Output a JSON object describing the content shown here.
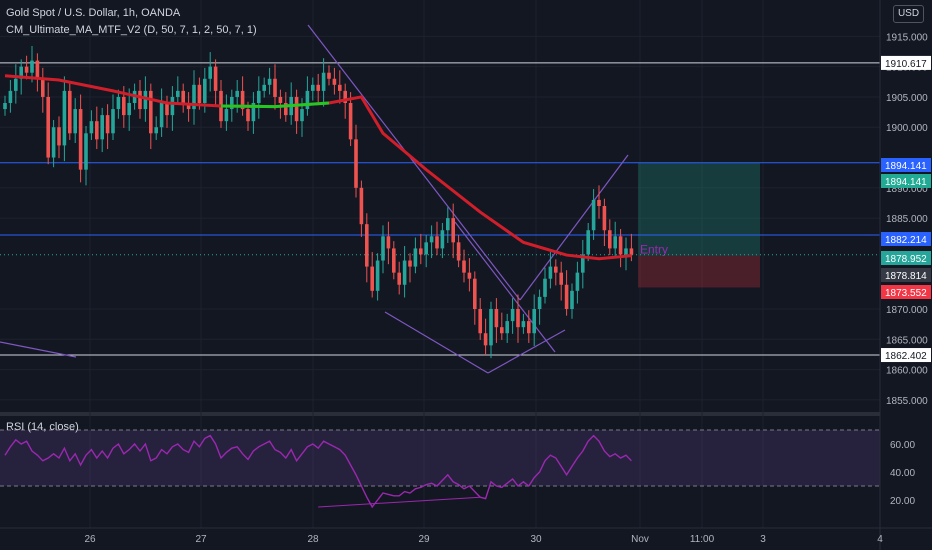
{
  "header": {
    "title": "Gold Spot / U.S. Dollar, 1h, OANDA",
    "indicator": "CM_Ultimate_MA_MTF_V2 (D, 50, 7, 1, 2, 50, 7, 1)",
    "currency": "USD"
  },
  "rsi_legend": "RSI (14, close)",
  "chart_data": [
    {
      "type": "candlestick",
      "title": "Gold Spot / U.S. Dollar, 1h, OANDA",
      "ylim": [
        1853,
        1921
      ],
      "y_ticks": [
        "1915.000",
        "1910.000",
        "1905.000",
        "1900.000",
        "1890.000",
        "1885.000",
        "1870.000",
        "1865.000",
        "1860.000",
        "1855.000"
      ],
      "x_labels": [
        "26",
        "27",
        "28",
        "29",
        "30",
        "Nov",
        "11:00",
        "3",
        "4"
      ],
      "candles_close": [
        1904,
        1906,
        1908,
        1910,
        1909,
        1911,
        1908,
        1905,
        1895,
        1900,
        1897,
        1906,
        1899,
        1903,
        1893,
        1899,
        1901,
        1898,
        1902,
        1899,
        1903,
        1905,
        1902,
        1904,
        1906,
        1903,
        1906,
        1899,
        1900,
        1904,
        1902,
        1905,
        1906,
        1904,
        1903,
        1907,
        1904,
        1908,
        1910,
        1906,
        1901,
        1903,
        1905,
        1906,
        1903,
        1901,
        1904,
        1906,
        1907,
        1908,
        1905,
        1904,
        1902,
        1905,
        1901,
        1903,
        1906,
        1907,
        1906,
        1909,
        1908,
        1907,
        1906,
        1904,
        1898,
        1890,
        1884,
        1877,
        1873,
        1878,
        1882,
        1880,
        1876,
        1874,
        1878,
        1877,
        1880,
        1879,
        1881,
        1882,
        1880,
        1883,
        1885,
        1881,
        1878,
        1876,
        1875,
        1870,
        1866,
        1864,
        1870,
        1867,
        1866,
        1868,
        1870,
        1867,
        1868,
        1866,
        1870,
        1872,
        1875,
        1877,
        1876,
        1874,
        1870,
        1873,
        1876,
        1879,
        1883,
        1888,
        1887,
        1883,
        1880,
        1882,
        1879,
        1880,
        1879
      ],
      "key_levels": [
        {
          "label": "1910.617",
          "value": 1910.617
        },
        {
          "label": "1894.141",
          "value": 1894.141
        },
        {
          "label": "1882.214",
          "value": 1882.214
        },
        {
          "label": "1862.402",
          "value": 1862.402
        }
      ],
      "price_labels": [
        {
          "label": "1894.141",
          "value": 1894.141,
          "color": "#22ab94"
        },
        {
          "label": "1882.214",
          "value": 1882.214,
          "color": "#2962ff"
        },
        {
          "label": "1878.952",
          "value": 1878.952,
          "color": "#26a69a"
        },
        {
          "label": "1878.814",
          "value": 1878.814,
          "color": "#363a45"
        },
        {
          "label": "1873.552",
          "value": 1873.552,
          "color": "#f23645"
        }
      ],
      "position": {
        "entry": 1878.814,
        "target": 1894.141,
        "stop": 1873.552,
        "label": "Entry"
      },
      "moving_average": [
        [
          0,
          1908.5
        ],
        [
          10,
          1907.8
        ],
        [
          20,
          1906
        ],
        [
          30,
          1904
        ],
        [
          40,
          1903.5
        ],
        [
          50,
          1903.4
        ],
        [
          60,
          1904
        ],
        [
          66,
          1905
        ],
        [
          70,
          1899
        ],
        [
          78,
          1893
        ],
        [
          88,
          1886
        ],
        [
          96,
          1881
        ],
        [
          104,
          1878.9
        ],
        [
          110,
          1878.3
        ],
        [
          116,
          1878.8
        ]
      ],
      "colors": {
        "up": "#26a69a",
        "down": "#ef5350",
        "ma_down": "#d01f2a",
        "ma_up": "#22c922"
      }
    },
    {
      "type": "line",
      "title": "RSI (14, close)",
      "ylim": [
        0,
        80
      ],
      "y_ticks": [
        "60.00",
        "40.00",
        "20.00"
      ],
      "bands": [
        30,
        70
      ],
      "values": [
        52,
        58,
        63,
        60,
        62,
        55,
        52,
        48,
        50,
        53,
        50,
        57,
        48,
        53,
        45,
        52,
        56,
        50,
        55,
        50,
        57,
        60,
        53,
        56,
        60,
        55,
        60,
        48,
        50,
        56,
        53,
        58,
        60,
        56,
        54,
        62,
        58,
        64,
        66,
        60,
        50,
        54,
        57,
        58,
        53,
        49,
        55,
        58,
        60,
        62,
        56,
        54,
        50,
        56,
        48,
        53,
        58,
        60,
        57,
        62,
        60,
        58,
        56,
        52,
        45,
        38,
        30,
        22,
        15,
        20,
        25,
        24,
        23,
        23,
        26,
        25,
        28,
        29,
        31,
        32,
        30,
        34,
        38,
        33,
        31,
        28,
        30,
        26,
        22,
        21,
        33,
        30,
        29,
        32,
        35,
        30,
        33,
        30,
        36,
        40,
        48,
        52,
        50,
        44,
        38,
        44,
        50,
        55,
        62,
        66,
        62,
        55,
        51,
        53,
        50,
        52,
        48
      ]
    }
  ]
}
